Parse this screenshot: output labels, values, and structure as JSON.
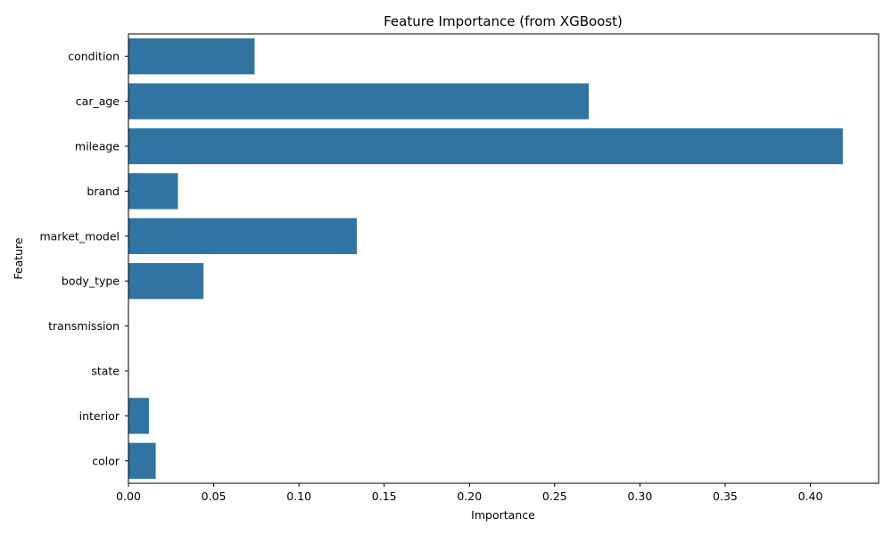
{
  "chart_data": {
    "type": "bar",
    "orientation": "horizontal",
    "title": "Feature Importance (from XGBoost)",
    "xlabel": "Importance",
    "ylabel": "Feature",
    "categories": [
      "condition",
      "car_age",
      "mileage",
      "brand",
      "market_model",
      "body_type",
      "transmission",
      "state",
      "interior",
      "color"
    ],
    "values": [
      0.074,
      0.27,
      0.419,
      0.029,
      0.134,
      0.044,
      0.0,
      0.0,
      0.012,
      0.016
    ],
    "xlim": [
      0,
      0.44
    ],
    "xticks": [
      "0.00",
      "0.05",
      "0.10",
      "0.15",
      "0.20",
      "0.25",
      "0.30",
      "0.35",
      "0.40"
    ],
    "grid": false,
    "bar_color": "#3274a1"
  }
}
